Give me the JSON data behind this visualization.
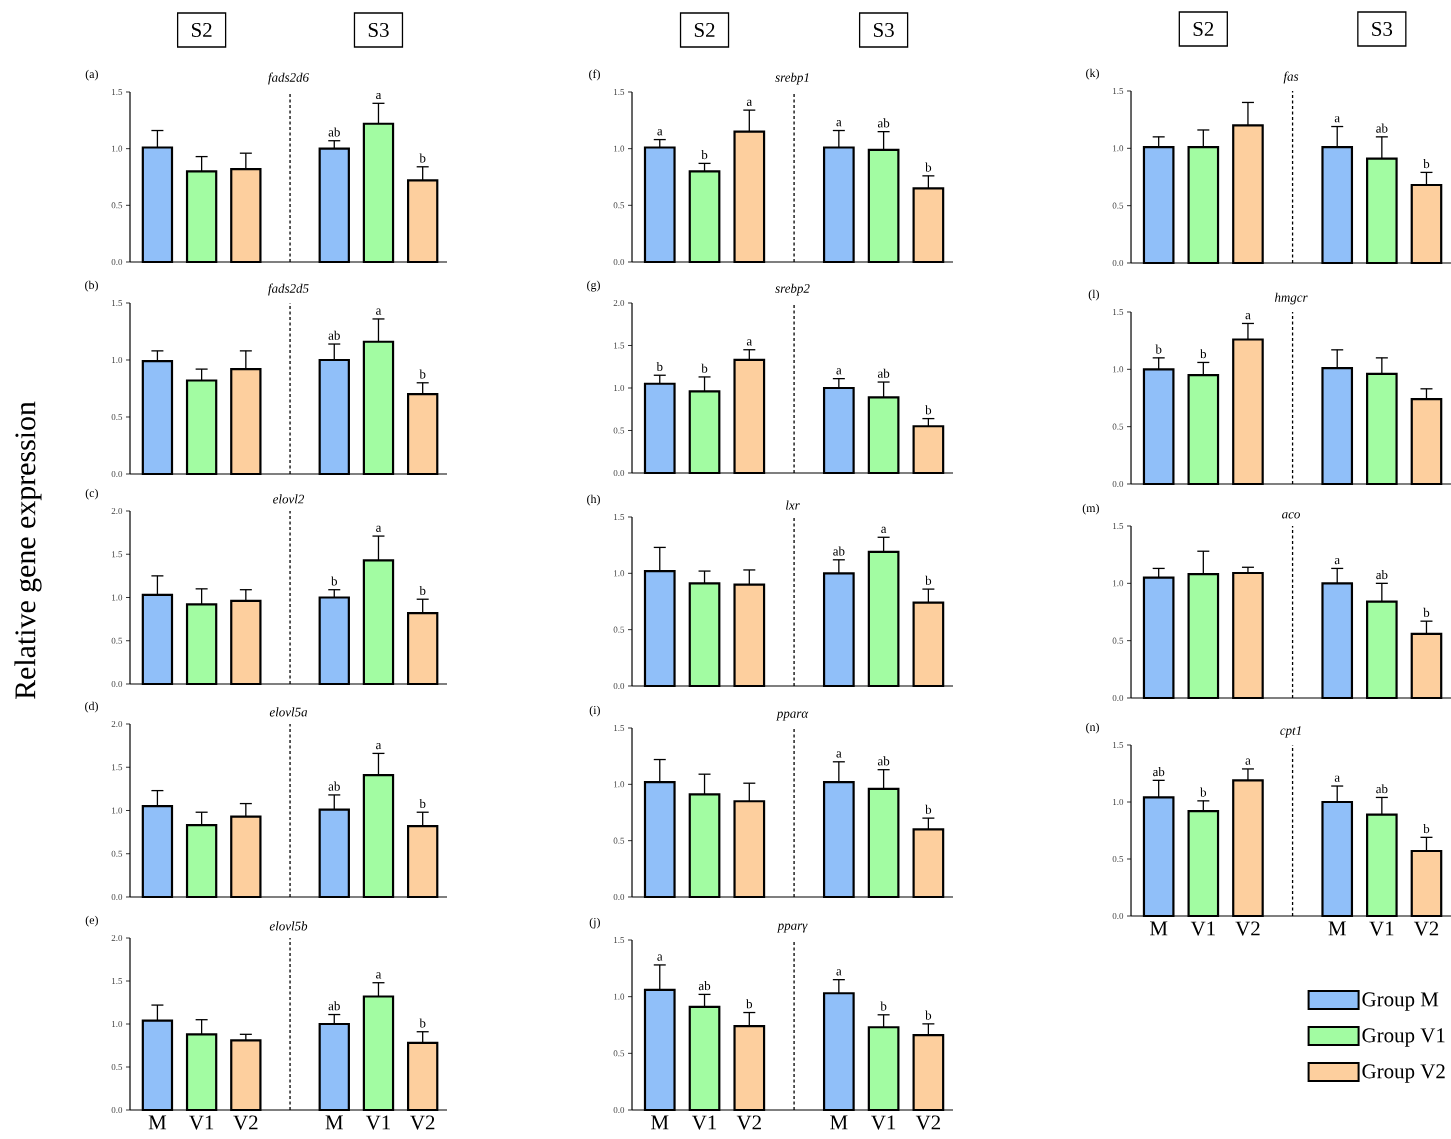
{
  "chart_data": [
    {
      "type": "bar",
      "title": "fads2d6",
      "subtitle": "(a)",
      "annotations": [
        "S2",
        "S3"
      ],
      "categories": [
        null,
        null,
        null,
        null,
        null,
        null,
        null
      ],
      "ylim": [
        0,
        1.5
      ],
      "yticks": [
        {
          "value": 0,
          "label": "0.0"
        },
        {
          "value": 0.5,
          "label": "0.5"
        },
        {
          "value": 1,
          "label": "1.0"
        },
        {
          "value": 1.5,
          "label": "1.5"
        }
      ],
      "series": [
        {
          "color": "#90bff9",
          "values": [
            1.01,
            null,
            null,
            null,
            1.0,
            null,
            null
          ],
          "errors": [
            0.15,
            null,
            null,
            null,
            0.07,
            null,
            null
          ],
          "value_labels": [
            null,
            null,
            null,
            null,
            "ab",
            null,
            null
          ]
        },
        {
          "color": "#a2fca2",
          "values": [
            null,
            0.8,
            null,
            null,
            null,
            1.22,
            null
          ],
          "errors": [
            null,
            0.13,
            null,
            null,
            null,
            0.18,
            null
          ],
          "value_labels": [
            null,
            null,
            null,
            null,
            null,
            "a",
            null
          ]
        },
        {
          "color": "#fdcf9e",
          "values": [
            null,
            null,
            0.82,
            null,
            null,
            null,
            0.72
          ],
          "errors": [
            null,
            null,
            0.14,
            null,
            null,
            null,
            0.12
          ],
          "value_labels": [
            null,
            null,
            null,
            null,
            null,
            null,
            "b"
          ]
        }
      ]
    },
    {
      "type": "bar",
      "title": "fads2d5",
      "subtitle": "(b)",
      "categories": [
        null,
        null,
        null,
        null,
        null,
        null,
        null
      ],
      "ylim": [
        0,
        1.5
      ],
      "yticks": [
        {
          "value": 0,
          "label": "0.0"
        },
        {
          "value": 0.5,
          "label": "0.5"
        },
        {
          "value": 1,
          "label": "1.0"
        },
        {
          "value": 1.5,
          "label": "1.5"
        }
      ],
      "series": [
        {
          "color": "#90bff9",
          "values": [
            0.99,
            null,
            null,
            null,
            1.0,
            null,
            null
          ],
          "errors": [
            0.09,
            null,
            null,
            null,
            0.14,
            null,
            null
          ],
          "value_labels": [
            null,
            null,
            null,
            null,
            "ab",
            null,
            null
          ]
        },
        {
          "color": "#a2fca2",
          "values": [
            null,
            0.82,
            null,
            null,
            null,
            1.16,
            null
          ],
          "errors": [
            null,
            0.1,
            null,
            null,
            null,
            0.2,
            null
          ],
          "value_labels": [
            null,
            null,
            null,
            null,
            null,
            "a",
            null
          ]
        },
        {
          "color": "#fdcf9e",
          "values": [
            null,
            null,
            0.92,
            null,
            null,
            null,
            0.7
          ],
          "errors": [
            null,
            null,
            0.16,
            null,
            null,
            null,
            0.1
          ],
          "value_labels": [
            null,
            null,
            null,
            null,
            null,
            null,
            "b"
          ]
        }
      ]
    },
    {
      "type": "bar",
      "title": "elovl2",
      "subtitle": "(c)",
      "ylabel": "Relative gene expression",
      "categories": [
        null,
        null,
        null,
        null,
        null,
        null,
        null
      ],
      "ylim": [
        0,
        2
      ],
      "yticks": [
        {
          "value": 0,
          "label": "0.0"
        },
        {
          "value": 0.5,
          "label": "0.5"
        },
        {
          "value": 1,
          "label": "1.0"
        },
        {
          "value": 1.5,
          "label": "1.5"
        },
        {
          "value": 2,
          "label": "2.0"
        }
      ],
      "series": [
        {
          "color": "#90bff9",
          "values": [
            1.03,
            null,
            null,
            null,
            1.0,
            null,
            null
          ],
          "errors": [
            0.22,
            null,
            null,
            null,
            0.09,
            null,
            null
          ],
          "value_labels": [
            null,
            null,
            null,
            null,
            "b",
            null,
            null
          ]
        },
        {
          "color": "#a2fca2",
          "values": [
            null,
            0.92,
            null,
            null,
            null,
            1.43,
            null
          ],
          "errors": [
            null,
            0.18,
            null,
            null,
            null,
            0.28,
            null
          ],
          "value_labels": [
            null,
            null,
            null,
            null,
            null,
            "a",
            null
          ]
        },
        {
          "color": "#fdcf9e",
          "values": [
            null,
            null,
            0.96,
            null,
            null,
            null,
            0.82
          ],
          "errors": [
            null,
            null,
            0.13,
            null,
            null,
            null,
            0.16
          ],
          "value_labels": [
            null,
            null,
            null,
            null,
            null,
            null,
            "b"
          ]
        }
      ]
    },
    {
      "type": "bar",
      "title": "elovl5a",
      "subtitle": "(d)",
      "categories": [
        null,
        null,
        null,
        null,
        null,
        null,
        null
      ],
      "ylim": [
        0,
        2
      ],
      "yticks": [
        {
          "value": 0,
          "label": "0.0"
        },
        {
          "value": 0.5,
          "label": "0.5"
        },
        {
          "value": 1,
          "label": "1.0"
        },
        {
          "value": 1.5,
          "label": "1.5"
        },
        {
          "value": 2,
          "label": "2.0"
        }
      ],
      "series": [
        {
          "color": "#90bff9",
          "values": [
            1.05,
            null,
            null,
            null,
            1.01,
            null,
            null
          ],
          "errors": [
            0.18,
            null,
            null,
            null,
            0.17,
            null,
            null
          ],
          "value_labels": [
            null,
            null,
            null,
            null,
            "ab",
            null,
            null
          ]
        },
        {
          "color": "#a2fca2",
          "values": [
            null,
            0.83,
            null,
            null,
            null,
            1.41,
            null
          ],
          "errors": [
            null,
            0.15,
            null,
            null,
            null,
            0.25,
            null
          ],
          "value_labels": [
            null,
            null,
            null,
            null,
            null,
            "a",
            null
          ]
        },
        {
          "color": "#fdcf9e",
          "values": [
            null,
            null,
            0.93,
            null,
            null,
            null,
            0.82
          ],
          "errors": [
            null,
            null,
            0.15,
            null,
            null,
            null,
            0.16
          ],
          "value_labels": [
            null,
            null,
            null,
            null,
            null,
            null,
            "b"
          ]
        }
      ]
    },
    {
      "type": "bar",
      "title": "elovl5b",
      "subtitle": "(e)",
      "categories": [
        "M",
        "V1",
        "V2",
        null,
        "M",
        "V1",
        "V2"
      ],
      "ylim": [
        0,
        2
      ],
      "yticks": [
        {
          "value": 0,
          "label": "0.0"
        },
        {
          "value": 0.5,
          "label": "0.5"
        },
        {
          "value": 1,
          "label": "1.0"
        },
        {
          "value": 1.5,
          "label": "1.5"
        },
        {
          "value": 2,
          "label": "2.0"
        }
      ],
      "series": [
        {
          "color": "#90bff9",
          "values": [
            1.04,
            null,
            null,
            null,
            1.0,
            null,
            null
          ],
          "errors": [
            0.18,
            null,
            null,
            null,
            0.11,
            null,
            null
          ],
          "value_labels": [
            null,
            null,
            null,
            null,
            "ab",
            null,
            null
          ]
        },
        {
          "color": "#a2fca2",
          "values": [
            null,
            0.88,
            null,
            null,
            null,
            1.32,
            null
          ],
          "errors": [
            null,
            0.17,
            null,
            null,
            null,
            0.16,
            null
          ],
          "value_labels": [
            null,
            null,
            null,
            null,
            null,
            "a",
            null
          ]
        },
        {
          "color": "#fdcf9e",
          "values": [
            null,
            null,
            0.81,
            null,
            null,
            null,
            0.78
          ],
          "errors": [
            null,
            null,
            0.07,
            null,
            null,
            null,
            0.13
          ],
          "value_labels": [
            null,
            null,
            null,
            null,
            null,
            null,
            "b"
          ]
        }
      ]
    },
    {
      "type": "bar",
      "title": "srebp1",
      "subtitle": "(f)",
      "annotations": [
        "S2",
        "S3"
      ],
      "categories": [
        null,
        null,
        null,
        null,
        null,
        null,
        null
      ],
      "ylim": [
        0,
        1.5
      ],
      "yticks": [
        {
          "value": 0,
          "label": "0.0"
        },
        {
          "value": 0.5,
          "label": "0.5"
        },
        {
          "value": 1,
          "label": "1.0"
        },
        {
          "value": 1.5,
          "label": "1.5"
        }
      ],
      "series": [
        {
          "color": "#90bff9",
          "values": [
            1.01,
            null,
            null,
            null,
            1.01,
            null,
            null
          ],
          "errors": [
            0.07,
            null,
            null,
            null,
            0.15,
            null,
            null
          ],
          "value_labels": [
            "a",
            null,
            null,
            null,
            "a",
            null,
            null
          ]
        },
        {
          "color": "#a2fca2",
          "values": [
            null,
            0.8,
            null,
            null,
            null,
            0.99,
            null
          ],
          "errors": [
            null,
            0.07,
            null,
            null,
            null,
            0.16,
            null
          ],
          "value_labels": [
            null,
            "b",
            null,
            null,
            null,
            "ab",
            null
          ]
        },
        {
          "color": "#fdcf9e",
          "values": [
            null,
            null,
            1.15,
            null,
            null,
            null,
            0.65
          ],
          "errors": [
            null,
            null,
            0.19,
            null,
            null,
            null,
            0.11
          ],
          "value_labels": [
            null,
            null,
            "a",
            null,
            null,
            null,
            "b"
          ]
        }
      ]
    },
    {
      "type": "bar",
      "title": "srebp2",
      "subtitle": "(g)",
      "categories": [
        null,
        null,
        null,
        null,
        null,
        null,
        null
      ],
      "ylim": [
        0,
        2
      ],
      "yticks": [
        {
          "value": 0,
          "label": "0.0"
        },
        {
          "value": 0.5,
          "label": "0.5"
        },
        {
          "value": 1,
          "label": "1.0"
        },
        {
          "value": 1.5,
          "label": "1.5"
        },
        {
          "value": 2,
          "label": "2.0"
        }
      ],
      "series": [
        {
          "color": "#90bff9",
          "values": [
            1.05,
            null,
            null,
            null,
            1.0,
            null,
            null
          ],
          "errors": [
            0.1,
            null,
            null,
            null,
            0.11,
            null,
            null
          ],
          "value_labels": [
            "b",
            null,
            null,
            null,
            "a",
            null,
            null
          ]
        },
        {
          "color": "#a2fca2",
          "values": [
            null,
            0.96,
            null,
            null,
            null,
            0.89,
            null
          ],
          "errors": [
            null,
            0.17,
            null,
            null,
            null,
            0.18,
            null
          ],
          "value_labels": [
            null,
            "b",
            null,
            null,
            null,
            "ab",
            null
          ]
        },
        {
          "color": "#fdcf9e",
          "values": [
            null,
            null,
            1.33,
            null,
            null,
            null,
            0.55
          ],
          "errors": [
            null,
            null,
            0.12,
            null,
            null,
            null,
            0.09
          ],
          "value_labels": [
            null,
            null,
            "a",
            null,
            null,
            null,
            "b"
          ]
        }
      ]
    },
    {
      "type": "bar",
      "title": "lxr",
      "subtitle": "(h)",
      "categories": [
        null,
        null,
        null,
        null,
        null,
        null,
        null
      ],
      "ylim": [
        0,
        1.5
      ],
      "yticks": [
        {
          "value": 0,
          "label": "0.0"
        },
        {
          "value": 0.5,
          "label": "0.5"
        },
        {
          "value": 1,
          "label": "1.0"
        },
        {
          "value": 1.5,
          "label": "1.5"
        }
      ],
      "series": [
        {
          "color": "#90bff9",
          "values": [
            1.02,
            null,
            null,
            null,
            1.0,
            null,
            null
          ],
          "errors": [
            0.21,
            null,
            null,
            null,
            0.12,
            null,
            null
          ],
          "value_labels": [
            null,
            null,
            null,
            null,
            "ab",
            null,
            null
          ]
        },
        {
          "color": "#a2fca2",
          "values": [
            null,
            0.91,
            null,
            null,
            null,
            1.19,
            null
          ],
          "errors": [
            null,
            0.11,
            null,
            null,
            null,
            0.13,
            null
          ],
          "value_labels": [
            null,
            null,
            null,
            null,
            null,
            "a",
            null
          ]
        },
        {
          "color": "#fdcf9e",
          "values": [
            null,
            null,
            0.9,
            null,
            null,
            null,
            0.74
          ],
          "errors": [
            null,
            null,
            0.13,
            null,
            null,
            null,
            0.12
          ],
          "value_labels": [
            null,
            null,
            null,
            null,
            null,
            null,
            "b"
          ]
        }
      ]
    },
    {
      "type": "bar",
      "title": "pparα",
      "subtitle": "(i)",
      "categories": [
        null,
        null,
        null,
        null,
        null,
        null,
        null
      ],
      "ylim": [
        0,
        1.5
      ],
      "yticks": [
        {
          "value": 0,
          "label": "0.0"
        },
        {
          "value": 0.5,
          "label": "0.5"
        },
        {
          "value": 1,
          "label": "1.0"
        },
        {
          "value": 1.5,
          "label": "1.5"
        }
      ],
      "series": [
        {
          "color": "#90bff9",
          "values": [
            1.02,
            null,
            null,
            null,
            1.02,
            null,
            null
          ],
          "errors": [
            0.2,
            null,
            null,
            null,
            0.18,
            null,
            null
          ],
          "value_labels": [
            null,
            null,
            null,
            null,
            "a",
            null,
            null
          ]
        },
        {
          "color": "#a2fca2",
          "values": [
            null,
            0.91,
            null,
            null,
            null,
            0.96,
            null
          ],
          "errors": [
            null,
            0.18,
            null,
            null,
            null,
            0.17,
            null
          ],
          "value_labels": [
            null,
            null,
            null,
            null,
            null,
            "ab",
            null
          ]
        },
        {
          "color": "#fdcf9e",
          "values": [
            null,
            null,
            0.85,
            null,
            null,
            null,
            0.6
          ],
          "errors": [
            null,
            null,
            0.16,
            null,
            null,
            null,
            0.1
          ],
          "value_labels": [
            null,
            null,
            null,
            null,
            null,
            null,
            "b"
          ]
        }
      ]
    },
    {
      "type": "bar",
      "title": "pparγ",
      "subtitle": "(j)",
      "categories": [
        "M",
        "V1",
        "V2",
        null,
        "M",
        "V1",
        "V2"
      ],
      "ylim": [
        0,
        1.5
      ],
      "yticks": [
        {
          "value": 0,
          "label": "0.0"
        },
        {
          "value": 0.5,
          "label": "0.5"
        },
        {
          "value": 1,
          "label": "1.0"
        },
        {
          "value": 1.5,
          "label": "1.5"
        }
      ],
      "series": [
        {
          "color": "#90bff9",
          "values": [
            1.06,
            null,
            null,
            null,
            1.03,
            null,
            null
          ],
          "errors": [
            0.22,
            null,
            null,
            null,
            0.12,
            null,
            null
          ],
          "value_labels": [
            "a",
            null,
            null,
            null,
            "a",
            null,
            null
          ]
        },
        {
          "color": "#a2fca2",
          "values": [
            null,
            0.91,
            null,
            null,
            null,
            0.73,
            null
          ],
          "errors": [
            null,
            0.11,
            null,
            null,
            null,
            0.11,
            null
          ],
          "value_labels": [
            null,
            "ab",
            null,
            null,
            null,
            "b",
            null
          ]
        },
        {
          "color": "#fdcf9e",
          "values": [
            null,
            null,
            0.74,
            null,
            null,
            null,
            0.66
          ],
          "errors": [
            null,
            null,
            0.12,
            null,
            null,
            null,
            0.1
          ],
          "value_labels": [
            null,
            null,
            "b",
            null,
            null,
            null,
            "b"
          ]
        }
      ]
    },
    {
      "type": "bar",
      "title": "fas",
      "subtitle": "(k)",
      "annotations": [
        "S2",
        "S3"
      ],
      "categories": [
        null,
        null,
        null,
        null,
        null,
        null,
        null
      ],
      "ylim": [
        0,
        1.5
      ],
      "yticks": [
        {
          "value": 0,
          "label": "0.0"
        },
        {
          "value": 0.5,
          "label": "0.5"
        },
        {
          "value": 1,
          "label": "1.0"
        },
        {
          "value": 1.5,
          "label": "1.5"
        }
      ],
      "series": [
        {
          "color": "#90bff9",
          "values": [
            1.01,
            null,
            null,
            null,
            1.01,
            null,
            null
          ],
          "errors": [
            0.09,
            null,
            null,
            null,
            0.18,
            null,
            null
          ],
          "value_labels": [
            null,
            null,
            null,
            null,
            "a",
            null,
            null
          ]
        },
        {
          "color": "#a2fca2",
          "values": [
            null,
            1.01,
            null,
            null,
            null,
            0.91,
            null
          ],
          "errors": [
            null,
            0.15,
            null,
            null,
            null,
            0.19,
            null
          ],
          "value_labels": [
            null,
            null,
            null,
            null,
            null,
            "ab",
            null
          ]
        },
        {
          "color": "#fdcf9e",
          "values": [
            null,
            null,
            1.2,
            null,
            null,
            null,
            0.68
          ],
          "errors": [
            null,
            null,
            0.2,
            null,
            null,
            null,
            0.11
          ],
          "value_labels": [
            null,
            null,
            null,
            null,
            null,
            null,
            "b"
          ]
        }
      ]
    },
    {
      "type": "bar",
      "title": "hmgcr",
      "subtitle": "(l)",
      "categories": [
        null,
        null,
        null,
        null,
        null,
        null,
        null
      ],
      "ylim": [
        0,
        1.5
      ],
      "yticks": [
        {
          "value": 0,
          "label": "0.0"
        },
        {
          "value": 0.5,
          "label": "0.5"
        },
        {
          "value": 1,
          "label": "1.0"
        },
        {
          "value": 1.5,
          "label": "1.5"
        }
      ],
      "series": [
        {
          "color": "#90bff9",
          "values": [
            1.0,
            null,
            null,
            null,
            1.01,
            null,
            null
          ],
          "errors": [
            0.1,
            null,
            null,
            null,
            0.16,
            null,
            null
          ],
          "value_labels": [
            "b",
            null,
            null,
            null,
            null,
            null,
            null
          ]
        },
        {
          "color": "#a2fca2",
          "values": [
            null,
            0.95,
            null,
            null,
            null,
            0.96,
            null
          ],
          "errors": [
            null,
            0.11,
            null,
            null,
            null,
            0.14,
            null
          ],
          "value_labels": [
            null,
            "b",
            null,
            null,
            null,
            null,
            null
          ]
        },
        {
          "color": "#fdcf9e",
          "values": [
            null,
            null,
            1.26,
            null,
            null,
            null,
            0.74
          ],
          "errors": [
            null,
            null,
            0.14,
            null,
            null,
            null,
            0.09
          ],
          "value_labels": [
            null,
            null,
            "a",
            null,
            null,
            null,
            null
          ]
        }
      ]
    },
    {
      "type": "bar",
      "title": "aco",
      "subtitle": "(m)",
      "categories": [
        null,
        null,
        null,
        null,
        null,
        null,
        null
      ],
      "ylim": [
        0,
        1.5
      ],
      "yticks": [
        {
          "value": 0,
          "label": "0.0"
        },
        {
          "value": 0.5,
          "label": "0.5"
        },
        {
          "value": 1,
          "label": "1.0"
        },
        {
          "value": 1.5,
          "label": "1.5"
        }
      ],
      "series": [
        {
          "color": "#90bff9",
          "values": [
            1.05,
            null,
            null,
            null,
            1.0,
            null,
            null
          ],
          "errors": [
            0.08,
            null,
            null,
            null,
            0.13,
            null,
            null
          ],
          "value_labels": [
            null,
            null,
            null,
            null,
            "a",
            null,
            null
          ]
        },
        {
          "color": "#a2fca2",
          "values": [
            null,
            1.08,
            null,
            null,
            null,
            0.84,
            null
          ],
          "errors": [
            null,
            0.2,
            null,
            null,
            null,
            0.16,
            null
          ],
          "value_labels": [
            null,
            null,
            null,
            null,
            null,
            "ab",
            null
          ]
        },
        {
          "color": "#fdcf9e",
          "values": [
            null,
            null,
            1.09,
            null,
            null,
            null,
            0.56
          ],
          "errors": [
            null,
            null,
            0.05,
            null,
            null,
            null,
            0.11
          ],
          "value_labels": [
            null,
            null,
            null,
            null,
            null,
            null,
            "b"
          ]
        }
      ]
    },
    {
      "type": "bar",
      "title": "cpt1",
      "subtitle": "(n)",
      "legend": "bottom right",
      "categories": [
        "M",
        "V1",
        "V2",
        null,
        "M",
        "V1",
        "V2"
      ],
      "ylim": [
        0,
        1.5
      ],
      "yticks": [
        {
          "value": 0,
          "label": "0.0"
        },
        {
          "value": 0.5,
          "label": "0.5"
        },
        {
          "value": 1,
          "label": "1.0"
        },
        {
          "value": 1.5,
          "label": "1.5"
        }
      ],
      "series": [
        {
          "name": "Group M",
          "color": "#90bff9",
          "values": [
            1.04,
            null,
            null,
            null,
            1.0,
            null,
            null
          ],
          "errors": [
            0.15,
            null,
            null,
            null,
            0.14,
            null,
            null
          ],
          "value_labels": [
            "ab",
            null,
            null,
            null,
            "a",
            null,
            null
          ]
        },
        {
          "name": "Group V1",
          "color": "#a2fca2",
          "values": [
            null,
            0.92,
            null,
            null,
            null,
            0.89,
            null
          ],
          "errors": [
            null,
            0.09,
            null,
            null,
            null,
            0.15,
            null
          ],
          "value_labels": [
            null,
            "b",
            null,
            null,
            null,
            "ab",
            null
          ]
        },
        {
          "name": "Group V2",
          "color": "#fdcf9e",
          "values": [
            null,
            null,
            1.19,
            null,
            null,
            null,
            0.57
          ],
          "errors": [
            null,
            null,
            0.1,
            null,
            null,
            null,
            0.12
          ],
          "value_labels": [
            null,
            null,
            "a",
            null,
            null,
            null,
            "b"
          ]
        }
      ]
    }
  ]
}
